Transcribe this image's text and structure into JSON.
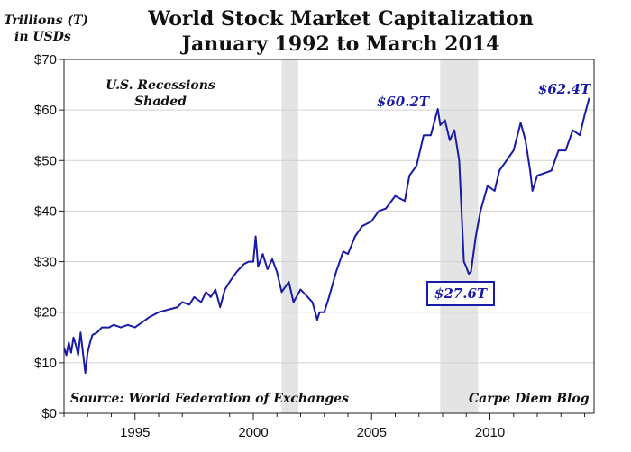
{
  "chart_data": {
    "type": "line",
    "title": [
      "World Stock Market Capitalization",
      "January 1992 to March 2014"
    ],
    "ylabel": [
      "Trillions (T)",
      "in USDs"
    ],
    "ylim": [
      0,
      70
    ],
    "xlim": [
      1992.0,
      2014.4
    ],
    "yticks": [
      0,
      10,
      20,
      30,
      40,
      50,
      60,
      70
    ],
    "ytick_labels": [
      "$0",
      "$10",
      "$20",
      "$30",
      "$40",
      "$50",
      "$60",
      "$70"
    ],
    "xticks": [
      1995,
      2000,
      2005,
      2010
    ],
    "xtick_labels": [
      "1995",
      "2000",
      "2005",
      "2010"
    ],
    "grid": "horizontal",
    "line_color": "#1a1aa8",
    "recession_color": "#e4e4e4",
    "recessions": [
      [
        2001.2,
        2001.9
      ],
      [
        2007.9,
        2009.5
      ]
    ],
    "notes": {
      "recessions": [
        "U.S. Recessions",
        "Shaded"
      ],
      "source": "Source: World Federation of Exchanges",
      "credit": "Carpe Diem Blog"
    },
    "annotations": [
      {
        "label": "$60.2T",
        "x": 2007.8,
        "y": 60.2,
        "boxed": false
      },
      {
        "label": "$27.6T",
        "x": 2009.1,
        "y": 27.6,
        "boxed": true
      },
      {
        "label": "$62.4T",
        "x": 2014.2,
        "y": 62.4,
        "boxed": false
      }
    ],
    "series": [
      {
        "x": [
          1992.0,
          1992.1,
          1992.2,
          1992.3,
          1992.4,
          1992.5,
          1992.6,
          1992.7,
          1992.8,
          1992.9,
          1993.0,
          1993.1,
          1993.2,
          1993.4,
          1993.6,
          1993.9,
          1994.1,
          1994.4,
          1994.7,
          1995.0,
          1995.3,
          1995.6,
          1996.0,
          1996.4,
          1996.8,
          1997.0,
          1997.3,
          1997.5,
          1997.8,
          1998.0,
          1998.2,
          1998.4,
          1998.6,
          1998.8,
          1999.0,
          1999.3,
          1999.6,
          1999.8,
          2000.0,
          2000.1,
          2000.2,
          2000.4,
          2000.6,
          2000.8,
          2001.0,
          2001.2,
          2001.5,
          2001.7,
          2002.0,
          2002.3,
          2002.5,
          2002.7,
          2002.8,
          2003.0,
          2003.2,
          2003.5,
          2003.8,
          2004.0,
          2004.3,
          2004.6,
          2005.0,
          2005.3,
          2005.6,
          2006.0,
          2006.4,
          2006.6,
          2006.9,
          2007.2,
          2007.5,
          2007.8,
          2007.9,
          2008.1,
          2008.3,
          2008.5,
          2008.7,
          2008.8,
          2008.9,
          2009.0,
          2009.1,
          2009.2,
          2009.4,
          2009.6,
          2009.9,
          2010.2,
          2010.4,
          2010.7,
          2011.0,
          2011.3,
          2011.5,
          2011.7,
          2011.8,
          2012.0,
          2012.3,
          2012.6,
          2012.9,
          2013.2,
          2013.5,
          2013.8,
          2014.0,
          2014.2
        ],
        "values": [
          13,
          11.5,
          14,
          12,
          15,
          13.5,
          11.5,
          16,
          12,
          8,
          12,
          14,
          15.5,
          16,
          17,
          17,
          17.5,
          17,
          17.5,
          17,
          18,
          19,
          20,
          20.5,
          21,
          22,
          21.5,
          23,
          22,
          24,
          23,
          24.5,
          21,
          24.5,
          26,
          28,
          29.5,
          30,
          30,
          35,
          29,
          31.5,
          28.5,
          30.5,
          28,
          24,
          26,
          22,
          24.5,
          23,
          22,
          18.5,
          20,
          20,
          23,
          28,
          32,
          31.5,
          35,
          37,
          38,
          40,
          40.5,
          43,
          42,
          47,
          49,
          55,
          55,
          60.2,
          57,
          58,
          54,
          56,
          50,
          40,
          30,
          29,
          27.6,
          28,
          35,
          40,
          45,
          44,
          48,
          50,
          52,
          57.5,
          54,
          48,
          44,
          47,
          47.5,
          48,
          52,
          52,
          56,
          55,
          59,
          62.4
        ]
      }
    ]
  }
}
